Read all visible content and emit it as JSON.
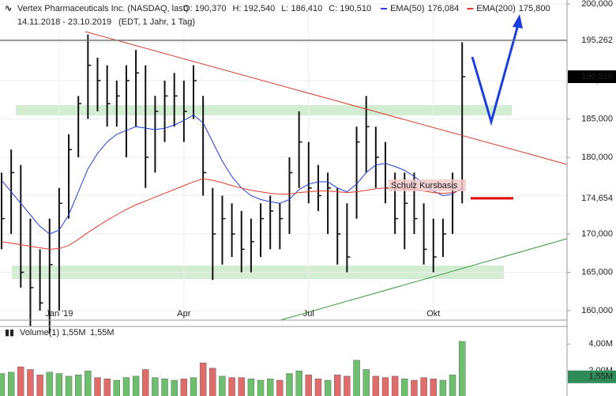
{
  "chart_data": {
    "type": "ohlc",
    "title": "Vertex Pharmaceuticals Inc. (NASDAQ, last)",
    "quote": [
      "O: 190,370",
      "H: 192,540",
      "L: 186,410",
      "C: 190,510"
    ],
    "date_range": "14.11.2018 - 23.10.2019",
    "session": "(EDT, 1 Jahr, 1 Tag)",
    "categories": [
      null,
      null,
      null,
      null,
      null,
      null,
      "Jan '19",
      null,
      null,
      null,
      null,
      null,
      null,
      null,
      null,
      null,
      null,
      null,
      null,
      "Apr",
      null,
      null,
      null,
      null,
      null,
      null,
      null,
      null,
      null,
      null,
      null,
      null,
      "Jul",
      null,
      null,
      null,
      null,
      null,
      null,
      null,
      null,
      null,
      null,
      null,
      null,
      "Okt",
      null,
      null,
      null
    ],
    "high": [
      178000,
      181000,
      179000,
      172000,
      168000,
      172000,
      176000,
      183000,
      188000,
      196000,
      193000,
      192000,
      190000,
      192000,
      194000,
      192000,
      188000,
      190000,
      191000,
      190000,
      192000,
      188000,
      176000,
      175000,
      174000,
      173000,
      172000,
      174000,
      175000,
      174000,
      180000,
      186000,
      182000,
      179000,
      178000,
      176000,
      174000,
      184000,
      188000,
      184000,
      182000,
      178000,
      178000,
      178000,
      174000,
      172000,
      172000,
      178000,
      195000
    ],
    "low": [
      168000,
      170000,
      163000,
      158000,
      160000,
      157000,
      160000,
      172000,
      180000,
      185000,
      186000,
      184000,
      184000,
      180000,
      184000,
      176000,
      178000,
      182000,
      184000,
      182000,
      185000,
      175000,
      164000,
      166000,
      167000,
      165000,
      165000,
      167000,
      168000,
      168000,
      170000,
      176000,
      174000,
      173000,
      170000,
      166000,
      165000,
      172000,
      178000,
      176000,
      174000,
      170000,
      168000,
      170000,
      166000,
      165000,
      167000,
      170000,
      174000
    ],
    "close": [
      172000,
      178000,
      165000,
      163000,
      161000,
      166000,
      174000,
      181000,
      187000,
      192000,
      190000,
      187000,
      188000,
      190000,
      191000,
      180000,
      186000,
      188000,
      188000,
      186000,
      190000,
      178000,
      170000,
      172000,
      170000,
      168000,
      169000,
      172000,
      173000,
      172000,
      178000,
      182000,
      176000,
      175000,
      176000,
      170000,
      167000,
      182000,
      184000,
      180000,
      176000,
      172000,
      174000,
      172000,
      168000,
      167000,
      170000,
      176000,
      190510
    ],
    "bar_color": "#111111",
    "series": [
      {
        "name": "EMA(50)",
        "color": "#1f3fd8",
        "last_label": "176,084",
        "values": [
          177000,
          175500,
          174000,
          172500,
          171000,
          170000,
          170500,
          172500,
          175500,
          178500,
          180500,
          182000,
          183000,
          183500,
          184000,
          183800,
          183600,
          183800,
          184200,
          184800,
          185500,
          184500,
          182000,
          179500,
          177500,
          176000,
          175000,
          174500,
          174200,
          174000,
          174500,
          175800,
          176500,
          176800,
          176800,
          176000,
          175500,
          176500,
          178000,
          179000,
          179200,
          178800,
          178300,
          177500,
          176600,
          175600,
          175000,
          175200,
          176084
        ]
      },
      {
        "name": "EMA(200)",
        "color": "#e03a2a",
        "last_label": "175,800",
        "values": [
          169000,
          168800,
          168600,
          168400,
          168200,
          168000,
          168100,
          168500,
          169300,
          170200,
          171000,
          171800,
          172500,
          173200,
          173800,
          174300,
          174800,
          175300,
          175800,
          176300,
          176800,
          177200,
          177000,
          176700,
          176300,
          176000,
          175700,
          175500,
          175300,
          175200,
          175200,
          175400,
          175500,
          175600,
          175600,
          175500,
          175400,
          175500,
          175700,
          175900,
          176000,
          176000,
          175900,
          175800,
          175600,
          175400,
          175300,
          175400,
          175800
        ]
      }
    ],
    "levels": [
      {
        "value": 195262,
        "label": "195,262",
        "color": "#777777"
      },
      {
        "value": 190510,
        "label": "190,510",
        "color": "#000000"
      },
      {
        "value": 174654,
        "label": "174,654",
        "color": "#e00000"
      }
    ],
    "annotation": "Schulz Kursbasis",
    "ylim": [
      160000,
      200000
    ],
    "yticks": [
      {
        "value": 160000,
        "label": "160,000"
      },
      {
        "value": 165000,
        "label": "165,000"
      },
      {
        "value": 170000,
        "label": "170,000"
      },
      {
        "value": 175000,
        "label": "175,000"
      },
      {
        "value": 180000,
        "label": "180,000"
      },
      {
        "value": 185000,
        "label": "185,000"
      },
      {
        "value": 190000,
        "label": "190,000"
      },
      {
        "value": 195000,
        "label": "195,000"
      },
      {
        "value": 200000,
        "label": "200,000"
      }
    ],
    "grid": true,
    "volume": {
      "title": "Volume(1)",
      "header_values": [
        "1,55M",
        "1,55M"
      ],
      "up_color": "#6dbf6d",
      "down_color": "#e06b6b",
      "values": [
        1800000,
        1900000,
        2300000,
        2100000,
        1700000,
        1900000,
        1800000,
        1600000,
        1700000,
        2000000,
        1500000,
        1400000,
        1300000,
        1500000,
        1600000,
        2100000,
        1500000,
        1400000,
        1300000,
        1400000,
        1500000,
        2600000,
        2200000,
        1600000,
        1500000,
        1500000,
        1400000,
        1300000,
        1400000,
        1300000,
        1800000,
        2000000,
        1700000,
        1400000,
        1300000,
        1700000,
        1600000,
        2800000,
        2100000,
        1600000,
        1500000,
        1600000,
        1400000,
        1300000,
        1500000,
        1400000,
        1300000,
        1700000,
        4200000
      ],
      "ylim": [
        0,
        5200000
      ],
      "yticks": [
        {
          "value": 2000000,
          "label": "2,00M"
        },
        {
          "value": 4000000,
          "label": "4,00M"
        }
      ],
      "level": {
        "value": 1550000,
        "label": "1,55M",
        "color": "#2e8b57"
      }
    }
  }
}
